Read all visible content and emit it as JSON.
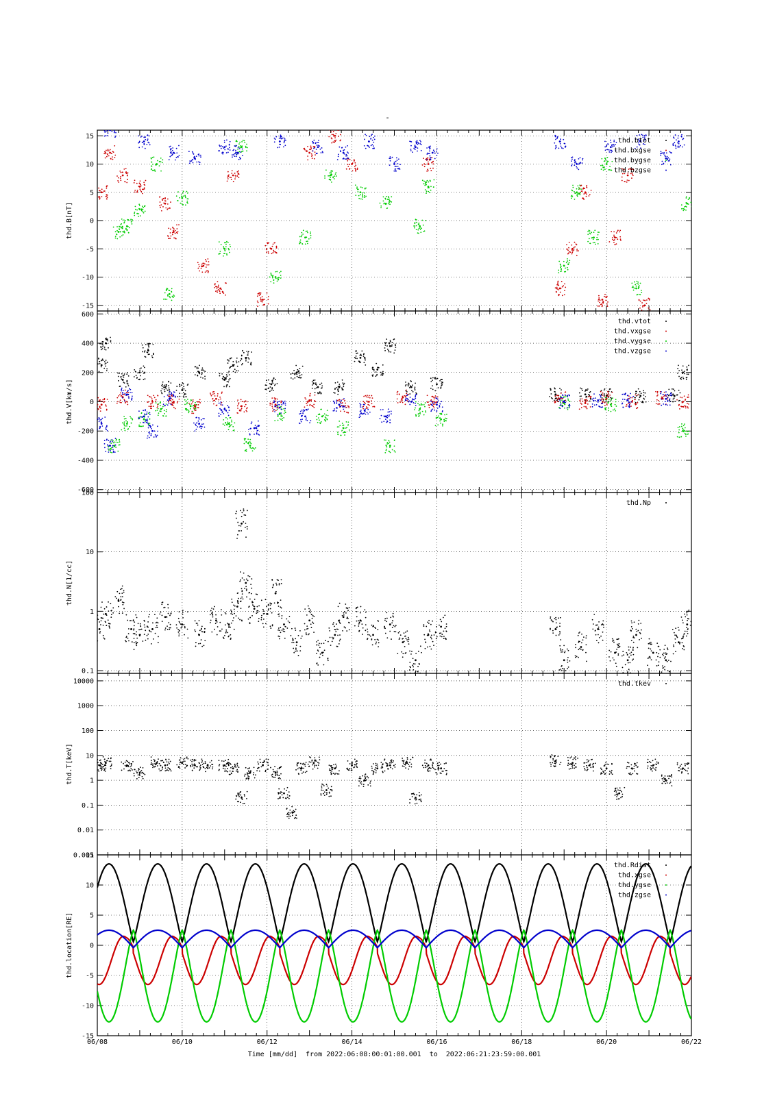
{
  "title": "-",
  "footer": {
    "time_label": "Time [mm/dd]",
    "from_label": "from",
    "from_value": "2022:06:08:00:01:00.001",
    "to_label": "to",
    "to_value": "2022:06:21:23:59:00.001"
  },
  "x_axis": {
    "ticks": [
      "06/08",
      "06/10",
      "06/12",
      "06/14",
      "06/16",
      "06/18",
      "06/20",
      "06/22"
    ],
    "tick_days": [
      0,
      2,
      4,
      6,
      8,
      10,
      12,
      14
    ],
    "range_days": [
      0,
      14
    ]
  },
  "colors": {
    "tot": "#000000",
    "x": "#cc0000",
    "y": "#00cc00",
    "z": "#0000cc"
  },
  "chart_data": [
    {
      "type": "scatter",
      "ylabel": "thd.B[nT]",
      "ylim": [
        -16,
        16
      ],
      "yticks": [
        15,
        10,
        5,
        0,
        -5,
        -10,
        -15
      ],
      "legend": [
        "thd.btot",
        "thd.bxgse",
        "thd.bygse",
        "thd.bzgse"
      ],
      "legend_placement": "top-right",
      "grid": true,
      "series": [
        {
          "name": "thd.bxgse",
          "points": [
            [
              0.1,
              5
            ],
            [
              0.3,
              12
            ],
            [
              0.6,
              8
            ],
            [
              1.0,
              6
            ],
            [
              1.6,
              3
            ],
            [
              1.8,
              -2
            ],
            [
              2.5,
              -8
            ],
            [
              2.9,
              -12
            ],
            [
              3.2,
              8
            ],
            [
              3.9,
              -14
            ],
            [
              4.1,
              -5
            ],
            [
              5.0,
              12
            ],
            [
              5.6,
              15
            ],
            [
              6.0,
              10
            ],
            [
              7.8,
              10
            ],
            [
              10.9,
              -12
            ],
            [
              11.2,
              -5
            ],
            [
              11.5,
              5
            ],
            [
              11.9,
              -14
            ],
            [
              12.2,
              -3
            ],
            [
              12.5,
              8
            ],
            [
              12.9,
              -15
            ]
          ]
        },
        {
          "name": "thd.bygse",
          "points": [
            [
              0.5,
              -2
            ],
            [
              0.7,
              -1
            ],
            [
              1.0,
              2
            ],
            [
              1.4,
              10
            ],
            [
              1.7,
              -13
            ],
            [
              2.0,
              4
            ],
            [
              3.0,
              -5
            ],
            [
              3.4,
              13
            ],
            [
              4.2,
              -10
            ],
            [
              4.9,
              -3
            ],
            [
              5.5,
              8
            ],
            [
              6.2,
              5
            ],
            [
              6.8,
              3
            ],
            [
              7.6,
              -1
            ],
            [
              7.8,
              6
            ],
            [
              11.0,
              -8
            ],
            [
              11.3,
              5
            ],
            [
              11.7,
              -3
            ],
            [
              12.0,
              10
            ],
            [
              12.7,
              -12
            ],
            [
              13.9,
              3
            ]
          ]
        },
        {
          "name": "thd.bzgse",
          "points": [
            [
              0.3,
              16
            ],
            [
              1.1,
              14
            ],
            [
              1.8,
              12
            ],
            [
              2.3,
              11
            ],
            [
              3.0,
              13
            ],
            [
              3.3,
              12
            ],
            [
              4.3,
              14
            ],
            [
              5.2,
              13
            ],
            [
              5.8,
              12
            ],
            [
              6.4,
              14
            ],
            [
              7.0,
              10
            ],
            [
              7.5,
              13
            ],
            [
              7.9,
              12
            ],
            [
              10.9,
              14
            ],
            [
              11.3,
              10
            ],
            [
              12.1,
              13
            ],
            [
              12.8,
              14
            ],
            [
              13.4,
              11
            ],
            [
              13.7,
              14
            ]
          ]
        }
      ]
    },
    {
      "type": "scatter",
      "ylabel": "thd.V[km/s]",
      "ylim": [
        -620,
        620
      ],
      "yticks": [
        600,
        400,
        200,
        0,
        -200,
        -400,
        -600
      ],
      "legend": [
        "thd.vtot",
        "thd.vxgse",
        "thd.vygse",
        "thd.vzgse"
      ],
      "legend_placement": "top-right",
      "grid": true,
      "series": [
        {
          "name": "thd.vtot",
          "points": [
            [
              0.1,
              250
            ],
            [
              0.2,
              400
            ],
            [
              0.6,
              150
            ],
            [
              1.0,
              200
            ],
            [
              1.2,
              350
            ],
            [
              1.6,
              100
            ],
            [
              2.0,
              80
            ],
            [
              2.4,
              200
            ],
            [
              3.0,
              150
            ],
            [
              3.2,
              250
            ],
            [
              3.5,
              300
            ],
            [
              4.1,
              120
            ],
            [
              4.7,
              200
            ],
            [
              5.2,
              100
            ],
            [
              5.7,
              100
            ],
            [
              6.2,
              300
            ],
            [
              6.6,
              220
            ],
            [
              6.9,
              380
            ],
            [
              7.4,
              100
            ],
            [
              8.0,
              120
            ],
            [
              10.8,
              50
            ],
            [
              11.5,
              50
            ],
            [
              12.0,
              40
            ],
            [
              12.8,
              40
            ],
            [
              13.6,
              40
            ],
            [
              13.8,
              200
            ]
          ]
        },
        {
          "name": "thd.vxgse",
          "points": [
            [
              0.1,
              -20
            ],
            [
              0.6,
              30
            ],
            [
              1.3,
              0
            ],
            [
              1.8,
              0
            ],
            [
              2.3,
              -30
            ],
            [
              2.8,
              20
            ],
            [
              3.4,
              -30
            ],
            [
              4.2,
              -20
            ],
            [
              5.0,
              10
            ],
            [
              5.8,
              -30
            ],
            [
              6.4,
              0
            ],
            [
              7.2,
              30
            ],
            [
              7.9,
              0
            ],
            [
              10.9,
              20
            ],
            [
              11.5,
              -10
            ],
            [
              12.0,
              20
            ],
            [
              12.6,
              0
            ],
            [
              13.3,
              20
            ],
            [
              13.8,
              0
            ]
          ]
        },
        {
          "name": "thd.vygse",
          "points": [
            [
              0.4,
              -300
            ],
            [
              0.7,
              -150
            ],
            [
              1.1,
              -120
            ],
            [
              1.5,
              -50
            ],
            [
              2.2,
              -30
            ],
            [
              3.1,
              -150
            ],
            [
              3.6,
              -300
            ],
            [
              4.3,
              -80
            ],
            [
              5.3,
              -100
            ],
            [
              5.8,
              -180
            ],
            [
              6.9,
              -300
            ],
            [
              7.6,
              -50
            ],
            [
              8.1,
              -120
            ],
            [
              11.0,
              -10
            ],
            [
              12.1,
              -20
            ],
            [
              13.8,
              -200
            ]
          ]
        },
        {
          "name": "thd.vzgse",
          "points": [
            [
              0.1,
              -150
            ],
            [
              0.3,
              -300
            ],
            [
              0.7,
              50
            ],
            [
              1.1,
              -100
            ],
            [
              1.3,
              -200
            ],
            [
              1.7,
              20
            ],
            [
              2.4,
              -150
            ],
            [
              3.0,
              -50
            ],
            [
              3.7,
              -180
            ],
            [
              4.3,
              -40
            ],
            [
              4.9,
              -100
            ],
            [
              5.7,
              -20
            ],
            [
              6.3,
              -60
            ],
            [
              6.8,
              -100
            ],
            [
              7.4,
              0
            ],
            [
              8.0,
              -20
            ],
            [
              11.0,
              0
            ],
            [
              11.8,
              10
            ],
            [
              12.5,
              10
            ],
            [
              13.4,
              20
            ]
          ]
        }
      ]
    },
    {
      "type": "scatter",
      "ylabel": "thd.N[1/cc]",
      "yscale": "log",
      "ylim": [
        0.09,
        100
      ],
      "yticks": [
        100,
        10,
        1,
        0.1
      ],
      "legend": [
        "thd.Np"
      ],
      "legend_placement": "top-right",
      "grid": true,
      "series": [
        {
          "name": "thd.Np",
          "points": [
            [
              0.05,
              0.5
            ],
            [
              0.2,
              0.9
            ],
            [
              0.5,
              1.5
            ],
            [
              0.8,
              0.5
            ],
            [
              1.0,
              0.4
            ],
            [
              1.3,
              0.5
            ],
            [
              1.6,
              0.8
            ],
            [
              2.0,
              0.6
            ],
            [
              2.4,
              0.4
            ],
            [
              2.8,
              0.7
            ],
            [
              3.1,
              0.6
            ],
            [
              3.3,
              1.2
            ],
            [
              3.4,
              30
            ],
            [
              3.5,
              3
            ],
            [
              3.7,
              1.1
            ],
            [
              4.0,
              0.9
            ],
            [
              4.2,
              2
            ],
            [
              4.4,
              0.6
            ],
            [
              4.7,
              0.3
            ],
            [
              5.0,
              0.7
            ],
            [
              5.3,
              0.2
            ],
            [
              5.6,
              0.4
            ],
            [
              5.8,
              0.8
            ],
            [
              6.2,
              0.7
            ],
            [
              6.5,
              0.4
            ],
            [
              6.9,
              0.6
            ],
            [
              7.2,
              0.3
            ],
            [
              7.5,
              0.15
            ],
            [
              7.8,
              0.4
            ],
            [
              8.1,
              0.55
            ],
            [
              10.8,
              0.5
            ],
            [
              11.0,
              0.15
            ],
            [
              11.4,
              0.25
            ],
            [
              11.8,
              0.5
            ],
            [
              12.2,
              0.2
            ],
            [
              12.5,
              0.15
            ],
            [
              12.7,
              0.4
            ],
            [
              13.1,
              0.2
            ],
            [
              13.4,
              0.15
            ],
            [
              13.7,
              0.3
            ],
            [
              13.9,
              0.6
            ]
          ]
        }
      ]
    },
    {
      "type": "scatter",
      "ylabel": "thd.T[keV]",
      "yscale": "log",
      "ylim": [
        0.001,
        20000
      ],
      "yticks": [
        10000,
        1000,
        100,
        10,
        1,
        0.1,
        0.01,
        0.001
      ],
      "legend": [
        "thd.tkev"
      ],
      "legend_placement": "top-right",
      "grid": true,
      "series": [
        {
          "name": "thd.tkev",
          "points": [
            [
              0.05,
              4
            ],
            [
              0.2,
              5
            ],
            [
              0.7,
              4
            ],
            [
              1.0,
              2
            ],
            [
              1.4,
              5
            ],
            [
              1.6,
              4
            ],
            [
              2.0,
              5
            ],
            [
              2.3,
              4
            ],
            [
              2.6,
              4
            ],
            [
              3.0,
              4
            ],
            [
              3.2,
              3
            ],
            [
              3.4,
              0.2
            ],
            [
              3.6,
              2
            ],
            [
              3.9,
              4
            ],
            [
              4.2,
              2
            ],
            [
              4.4,
              0.3
            ],
            [
              4.6,
              0.05
            ],
            [
              4.8,
              3
            ],
            [
              5.1,
              5
            ],
            [
              5.4,
              0.4
            ],
            [
              5.6,
              3
            ],
            [
              6.0,
              4
            ],
            [
              6.3,
              1
            ],
            [
              6.6,
              3
            ],
            [
              6.9,
              4
            ],
            [
              7.3,
              5
            ],
            [
              7.5,
              0.2
            ],
            [
              7.8,
              4
            ],
            [
              8.1,
              3
            ],
            [
              10.8,
              6
            ],
            [
              11.2,
              5
            ],
            [
              11.6,
              4
            ],
            [
              12.0,
              3
            ],
            [
              12.3,
              0.3
            ],
            [
              12.6,
              3
            ],
            [
              13.1,
              4
            ],
            [
              13.4,
              1
            ],
            [
              13.8,
              3
            ]
          ]
        }
      ]
    },
    {
      "type": "line",
      "ylabel": "thd.location[RE]",
      "ylim": [
        -15,
        15
      ],
      "yticks": [
        15,
        10,
        5,
        0,
        -5,
        -10,
        -15
      ],
      "legend": [
        "thd.Rdist",
        "thd.xgse",
        "thd.ygse",
        "thd.zgse"
      ],
      "legend_placement": "top-right",
      "grid": true,
      "orbit_period_days": 1.15,
      "series": [
        {
          "name": "thd.Rdist",
          "description_range": [
            0.5,
            13.5
          ]
        },
        {
          "name": "thd.xgse",
          "description_range": [
            -7,
            3
          ]
        },
        {
          "name": "thd.ygse",
          "description_range": [
            -13,
            3
          ]
        },
        {
          "name": "thd.zgse",
          "description_range": [
            -0.5,
            2.5
          ]
        }
      ]
    }
  ]
}
